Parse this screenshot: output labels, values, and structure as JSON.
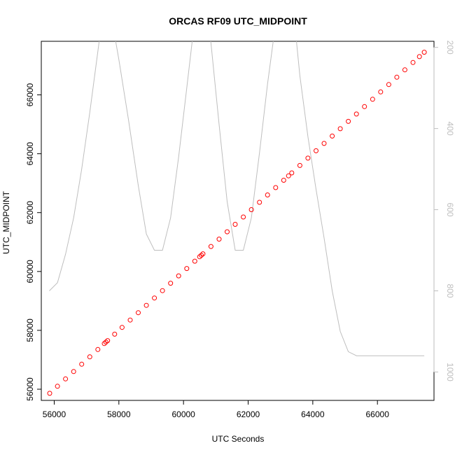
{
  "chart_data": {
    "type": "scatter",
    "title": "ORCAS RF09 UTC_MIDPOINT",
    "xlabel": "UTC Seconds",
    "ylabel": "UTC_MIDPOINT",
    "xlim": [
      55600,
      67750
    ],
    "ylim": [
      55620,
      67820
    ],
    "x_ticks": [
      56000,
      58000,
      60000,
      62000,
      64000,
      66000
    ],
    "y_ticks": [
      56000,
      58000,
      60000,
      62000,
      64000,
      66000
    ],
    "y2_lim": [
      1070,
      185
    ],
    "y2_ticks": [
      200,
      400,
      600,
      800,
      1000
    ],
    "grid": false,
    "series": [
      {
        "color": "#ff0000",
        "marker": "open-circle",
        "x": [
          55860,
          56100,
          56350,
          56600,
          56850,
          57100,
          57350,
          57550,
          57600,
          57650,
          57870,
          58100,
          58350,
          58600,
          58850,
          59100,
          59350,
          59600,
          59850,
          60100,
          60350,
          60500,
          60550,
          60600,
          60850,
          61100,
          61350,
          61600,
          61850,
          62100,
          62350,
          62600,
          62850,
          63100,
          63250,
          63350,
          63600,
          63850,
          64100,
          64350,
          64600,
          64850,
          65100,
          65350,
          65600,
          65850,
          66100,
          66350,
          66600,
          66850,
          67100,
          67300,
          67450
        ],
        "y": [
          55860,
          56100,
          56350,
          56600,
          56850,
          57100,
          57350,
          57550,
          57600,
          57650,
          57870,
          58100,
          58350,
          58600,
          58850,
          59100,
          59350,
          59600,
          59850,
          60100,
          60350,
          60500,
          60550,
          60600,
          60850,
          61100,
          61350,
          61600,
          61850,
          62100,
          62350,
          62600,
          62850,
          63100,
          63250,
          63350,
          63600,
          63850,
          64100,
          64350,
          64600,
          64850,
          65100,
          65350,
          65600,
          65850,
          66100,
          66350,
          66600,
          66850,
          67100,
          67300,
          67450
        ]
      },
      {
        "color": "#bebebe",
        "line": "solid",
        "axis": "right",
        "x": [
          55850,
          56100,
          56350,
          56600,
          56850,
          57100,
          57350,
          57480,
          57570,
          57780,
          58000,
          58300,
          58600,
          58850,
          59100,
          59350,
          59600,
          59850,
          60100,
          60350,
          60550,
          60650,
          60800,
          61100,
          61350,
          61600,
          61850,
          62100,
          62350,
          62600,
          62850,
          63150,
          63300,
          63450,
          63600,
          63850,
          64100,
          64350,
          64600,
          64850,
          65100,
          65350,
          65600,
          66000,
          66500,
          67000,
          67450
        ],
        "y": [
          800,
          780,
          710,
          620,
          500,
          360,
          210,
          130,
          130,
          130,
          230,
          380,
          540,
          660,
          700,
          700,
          620,
          470,
          300,
          130,
          90,
          90,
          150,
          390,
          580,
          700,
          700,
          620,
          460,
          290,
          140,
          130,
          140,
          150,
          270,
          420,
          550,
          670,
          800,
          900,
          950,
          960,
          960,
          960,
          960,
          960,
          960
        ]
      }
    ]
  }
}
